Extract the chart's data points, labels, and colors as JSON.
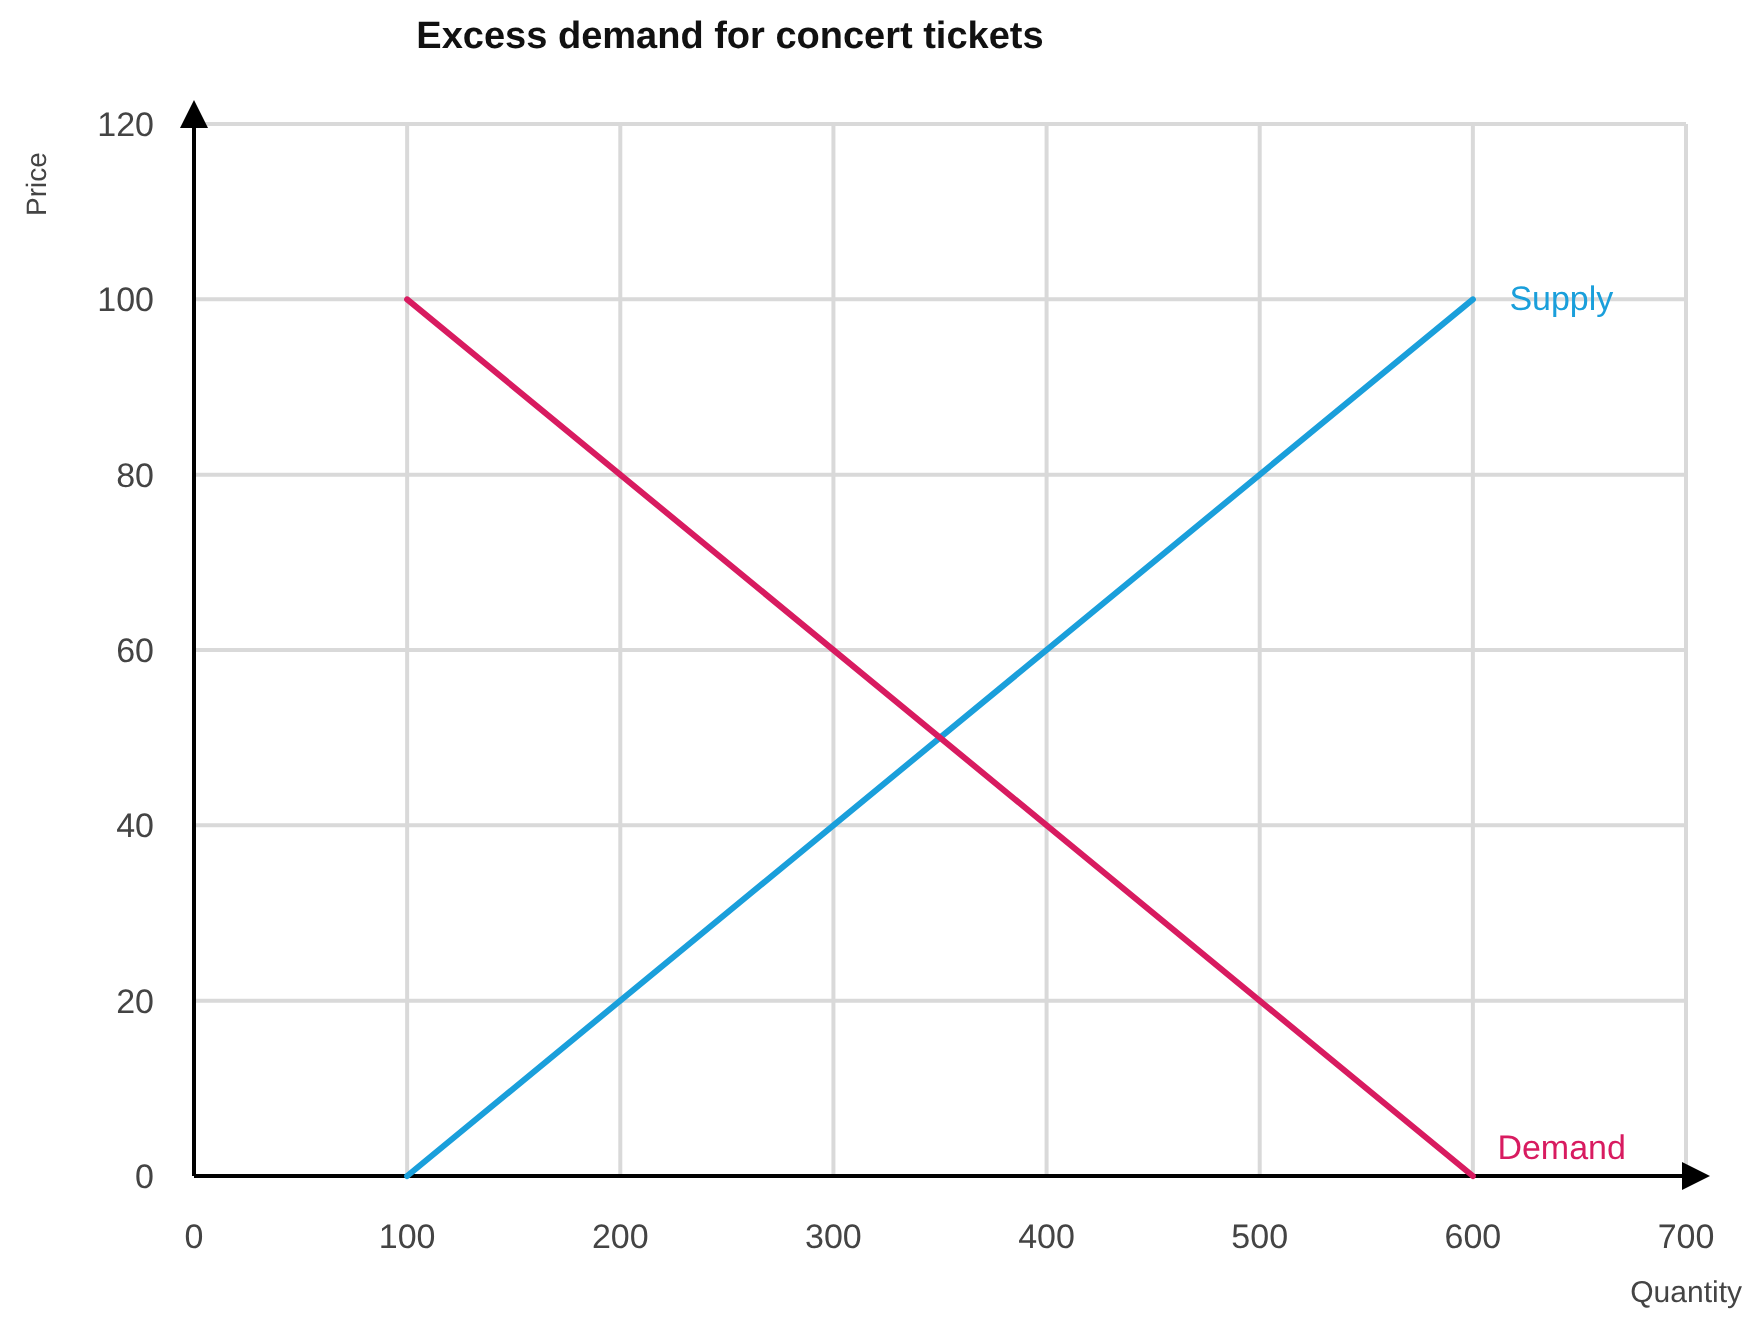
{
  "chart_data": {
    "type": "line",
    "title": "Excess demand for concert tickets",
    "xlabel": "Quantity",
    "ylabel": "Price",
    "x": [
      100,
      600
    ],
    "series": [
      {
        "name": "Supply",
        "color": "#1a9fdb",
        "values": [
          0,
          100
        ]
      },
      {
        "name": "Demand",
        "color": "#d81b60",
        "values": [
          100,
          0
        ]
      }
    ],
    "xlim": [
      0,
      700
    ],
    "xticks": [
      0,
      100,
      200,
      300,
      400,
      500,
      600,
      700
    ],
    "ylim": [
      0,
      120
    ],
    "yticks": [
      0,
      20,
      40,
      60,
      80,
      100,
      120
    ],
    "grid": true,
    "marker": "none",
    "line_style": "solid"
  }
}
